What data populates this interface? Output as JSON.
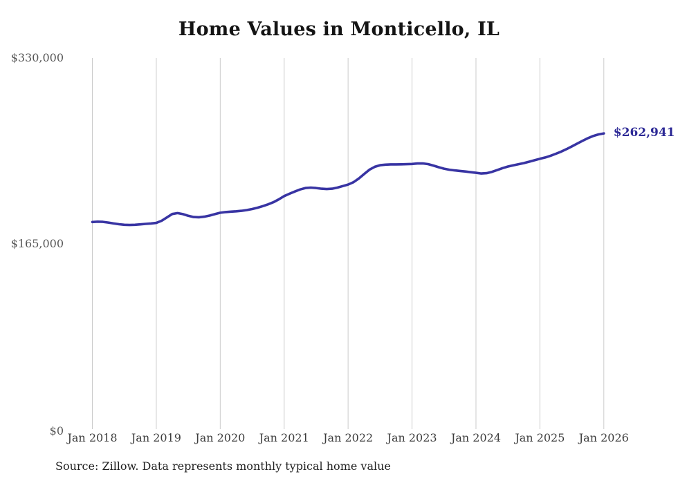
{
  "page": {
    "background_color": "#ffffff"
  },
  "source_note": "Source: Zillow. Data represents monthly typical home value",
  "chart_data": {
    "type": "line",
    "title": "Home Values in Monticello, IL",
    "xlabel": "",
    "ylabel": "",
    "ylim": [
      0,
      330000
    ],
    "grid": "vertical-only",
    "legend_position": "none",
    "line_color": "#3834a3",
    "gridline_color": "#cbcbcb",
    "end_label": "$262,941",
    "end_label_color": "#2d2a96",
    "y_ticks": [
      {
        "label": "$0",
        "value": 0
      },
      {
        "label": "$165,000",
        "value": 165000
      },
      {
        "label": "$330,000",
        "value": 330000
      }
    ],
    "x_ticks": [
      "Jan 2018",
      "Jan 2019",
      "Jan 2020",
      "Jan 2021",
      "Jan 2022",
      "Jan 2023",
      "Jan 2024",
      "Jan 2025",
      "Jan 2026"
    ],
    "series": [
      {
        "name": "Monthly typical home value",
        "interval": "monthly",
        "start_month": "2018-01",
        "end_month": "2026-01",
        "final_value": 262941,
        "values": [
          184200,
          184500,
          184300,
          183700,
          182900,
          182200,
          181700,
          181500,
          181700,
          182100,
          182500,
          182900,
          183400,
          185300,
          188300,
          191300,
          192100,
          191200,
          189700,
          188600,
          188400,
          188900,
          189900,
          191200,
          192400,
          193000,
          193400,
          193700,
          194100,
          194800,
          195700,
          196900,
          198300,
          199900,
          201800,
          204300,
          207200,
          209300,
          211300,
          213100,
          214400,
          214800,
          214400,
          213800,
          213500,
          213800,
          214800,
          216100,
          217500,
          219600,
          222800,
          226800,
          230700,
          233300,
          234700,
          235200,
          235400,
          235400,
          235500,
          235600,
          235800,
          236200,
          236300,
          235700,
          234400,
          232900,
          231600,
          230700,
          230100,
          229600,
          229100,
          228500,
          227900,
          227300,
          227600,
          228800,
          230400,
          232100,
          233500,
          234600,
          235600,
          236600,
          237800,
          239100,
          240400,
          241600,
          243100,
          244900,
          246800,
          249000,
          251400,
          253900,
          256400,
          258700,
          260700,
          262100,
          262941
        ]
      }
    ]
  }
}
